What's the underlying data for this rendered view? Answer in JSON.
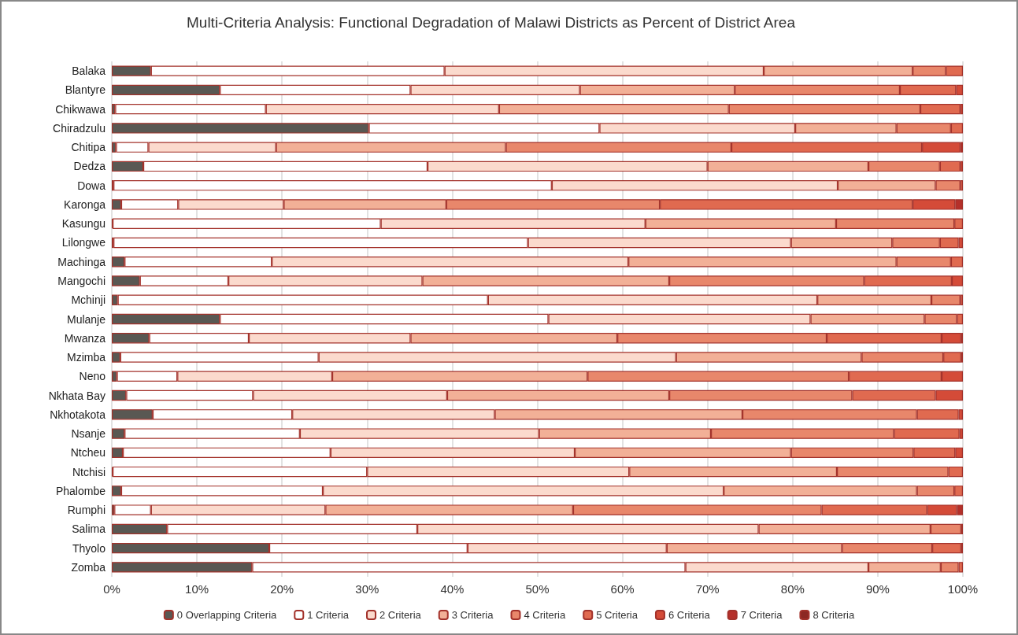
{
  "chart_data": {
    "type": "bar",
    "orientation": "horizontal",
    "stacked": true,
    "title": "Multi-Criteria Analysis: Functional Degradation of Malawi Districts as Percent of District Area",
    "categories": [
      "Balaka",
      "Blantyre",
      "Chikwawa",
      "Chiradzulu",
      "Chitipa",
      "Dedza",
      "Dowa",
      "Karonga",
      "Kasungu",
      "Lilongwe",
      "Machinga",
      "Mangochi",
      "Mchinji",
      "Mulanje",
      "Mwanza",
      "Mzimba",
      "Neno",
      "Nkhata Bay",
      "Nkhotakota",
      "Nsanje",
      "Ntcheu",
      "Ntchisi",
      "Phalombe",
      "Rumphi",
      "Salima",
      "Thyolo",
      "Zomba"
    ],
    "series": [
      {
        "name": "0 Overlapping Criteria",
        "color": "#595853",
        "values": [
          4.6,
          12.7,
          0.4,
          30.2,
          0.5,
          3.7,
          0.2,
          1.1,
          0.1,
          0.2,
          1.5,
          3.3,
          0.7,
          12.7,
          4.4,
          1.0,
          0.6,
          1.7,
          4.8,
          1.5,
          1.3,
          0.1,
          1.1,
          0.3,
          6.5,
          18.5,
          16.5
        ]
      },
      {
        "name": "1 Criteria",
        "color": "#ffffff",
        "values": [
          34.5,
          22.4,
          17.7,
          27.1,
          3.8,
          33.4,
          51.5,
          6.7,
          31.5,
          48.7,
          17.3,
          10.4,
          43.5,
          38.6,
          11.7,
          23.3,
          7.1,
          14.9,
          16.4,
          20.6,
          24.4,
          29.9,
          23.7,
          4.3,
          29.4,
          23.3,
          50.9
        ]
      },
      {
        "name": "2 Criteria",
        "color": "#fbdacd",
        "values": [
          37.5,
          19.9,
          27.4,
          23.0,
          15.0,
          32.9,
          33.6,
          12.4,
          31.1,
          30.9,
          41.9,
          22.8,
          38.7,
          30.8,
          19.0,
          42.0,
          18.2,
          22.8,
          23.8,
          28.1,
          28.7,
          30.8,
          47.1,
          20.5,
          40.1,
          23.4,
          21.5
        ]
      },
      {
        "name": "3 Criteria",
        "color": "#f2b097",
        "values": [
          17.5,
          18.2,
          27.0,
          11.9,
          27.0,
          18.9,
          11.5,
          19.1,
          22.4,
          11.9,
          31.5,
          29.0,
          13.4,
          13.4,
          24.3,
          21.8,
          30.0,
          26.1,
          29.1,
          20.2,
          25.4,
          24.4,
          22.7,
          29.1,
          20.2,
          20.6,
          8.5
        ]
      },
      {
        "name": "4 Criteria",
        "color": "#e8876b",
        "values": [
          3.9,
          19.4,
          22.5,
          6.4,
          26.5,
          8.4,
          2.9,
          25.1,
          13.9,
          5.6,
          6.4,
          22.9,
          3.4,
          3.8,
          24.6,
          9.6,
          30.7,
          21.5,
          20.5,
          21.5,
          14.4,
          13.1,
          4.4,
          29.2,
          3.6,
          10.6,
          2.1
        ]
      },
      {
        "name": "5 Criteria",
        "color": "#e06a50",
        "values": [
          2.0,
          6.6,
          4.7,
          1.4,
          22.4,
          2.4,
          0.3,
          29.7,
          1.0,
          2.2,
          1.4,
          10.3,
          0.3,
          0.7,
          13.5,
          2.1,
          10.9,
          9.8,
          4.9,
          7.7,
          4.9,
          1.7,
          1.0,
          12.4,
          0.2,
          3.4,
          0.5
        ]
      },
      {
        "name": "6 Criteria",
        "color": "#d44b38",
        "values": [
          null,
          0.8,
          0.3,
          null,
          4.5,
          0.3,
          null,
          5.0,
          null,
          0.5,
          null,
          1.3,
          null,
          null,
          2.3,
          0.2,
          2.5,
          3.2,
          0.5,
          0.4,
          0.9,
          null,
          null,
          3.5,
          null,
          0.2,
          null
        ]
      },
      {
        "name": "7 Criteria",
        "color": "#b5302a",
        "values": [
          null,
          null,
          null,
          null,
          0.3,
          null,
          null,
          0.9,
          null,
          null,
          null,
          null,
          null,
          null,
          0.2,
          null,
          null,
          null,
          null,
          null,
          null,
          null,
          null,
          0.7,
          null,
          null,
          null
        ]
      },
      {
        "name": "8 Criteria",
        "color": "#8c2823",
        "values": [
          null,
          null,
          null,
          null,
          null,
          null,
          null,
          null,
          null,
          null,
          null,
          null,
          null,
          null,
          null,
          null,
          null,
          null,
          null,
          null,
          null,
          null,
          null,
          null,
          null,
          null,
          null
        ]
      }
    ],
    "xlim": [
      0,
      100
    ],
    "xticks": [
      {
        "value": 0,
        "label": "0%"
      },
      {
        "value": 10,
        "label": "10%"
      },
      {
        "value": 20,
        "label": "20%"
      },
      {
        "value": 30,
        "label": "30%"
      },
      {
        "value": 40,
        "label": "40%"
      },
      {
        "value": 50,
        "label": "50%"
      },
      {
        "value": 60,
        "label": "60%"
      },
      {
        "value": 70,
        "label": "70%"
      },
      {
        "value": 80,
        "label": "80%"
      },
      {
        "value": 90,
        "label": "90%"
      },
      {
        "value": 100,
        "label": "100%"
      }
    ],
    "grid": "x",
    "legend": "bottom"
  }
}
